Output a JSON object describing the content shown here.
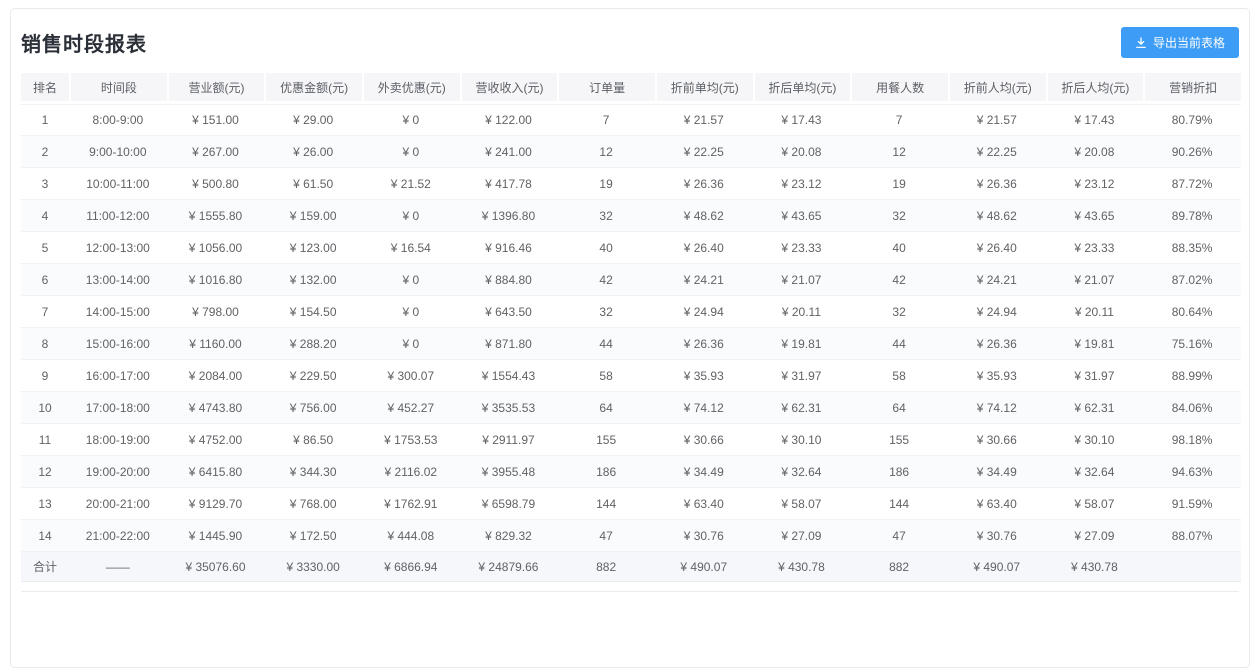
{
  "page": {
    "title": "销售时段报表"
  },
  "toolbar": {
    "export_button_label": "导出当前表格",
    "export_button_icon": "download-icon"
  },
  "colors": {
    "accent_blue": "#3d9cf5",
    "header_cell_bg": "#f6f6f8",
    "stripe_row_bg": "#fafbfc",
    "total_row_bg": "#f5f7fa",
    "row_border": "#f1f2f4",
    "card_border": "#e9eaec",
    "body_text": "#5f6266",
    "title_text": "#2b2f38"
  },
  "table": {
    "columns": [
      "排名",
      "时间段",
      "营业额(元)",
      "优惠金额(元)",
      "外卖优惠(元)",
      "营收收入(元)",
      "订单量",
      "折前单均(元)",
      "折后单均(元)",
      "用餐人数",
      "折前人均(元)",
      "折后人均(元)",
      "营销折扣"
    ],
    "rows": [
      [
        "1",
        "8:00-9:00",
        "¥ 151.00",
        "¥ 29.00",
        "¥ 0",
        "¥ 122.00",
        "7",
        "¥ 21.57",
        "¥ 17.43",
        "7",
        "¥ 21.57",
        "¥ 17.43",
        "80.79%"
      ],
      [
        "2",
        "9:00-10:00",
        "¥ 267.00",
        "¥ 26.00",
        "¥ 0",
        "¥ 241.00",
        "12",
        "¥ 22.25",
        "¥ 20.08",
        "12",
        "¥ 22.25",
        "¥ 20.08",
        "90.26%"
      ],
      [
        "3",
        "10:00-11:00",
        "¥ 500.80",
        "¥ 61.50",
        "¥ 21.52",
        "¥ 417.78",
        "19",
        "¥ 26.36",
        "¥ 23.12",
        "19",
        "¥ 26.36",
        "¥ 23.12",
        "87.72%"
      ],
      [
        "4",
        "11:00-12:00",
        "¥ 1555.80",
        "¥ 159.00",
        "¥ 0",
        "¥ 1396.80",
        "32",
        "¥ 48.62",
        "¥ 43.65",
        "32",
        "¥ 48.62",
        "¥ 43.65",
        "89.78%"
      ],
      [
        "5",
        "12:00-13:00",
        "¥ 1056.00",
        "¥ 123.00",
        "¥ 16.54",
        "¥ 916.46",
        "40",
        "¥ 26.40",
        "¥ 23.33",
        "40",
        "¥ 26.40",
        "¥ 23.33",
        "88.35%"
      ],
      [
        "6",
        "13:00-14:00",
        "¥ 1016.80",
        "¥ 132.00",
        "¥ 0",
        "¥ 884.80",
        "42",
        "¥ 24.21",
        "¥ 21.07",
        "42",
        "¥ 24.21",
        "¥ 21.07",
        "87.02%"
      ],
      [
        "7",
        "14:00-15:00",
        "¥ 798.00",
        "¥ 154.50",
        "¥ 0",
        "¥ 643.50",
        "32",
        "¥ 24.94",
        "¥ 20.11",
        "32",
        "¥ 24.94",
        "¥ 20.11",
        "80.64%"
      ],
      [
        "8",
        "15:00-16:00",
        "¥ 1160.00",
        "¥ 288.20",
        "¥ 0",
        "¥ 871.80",
        "44",
        "¥ 26.36",
        "¥ 19.81",
        "44",
        "¥ 26.36",
        "¥ 19.81",
        "75.16%"
      ],
      [
        "9",
        "16:00-17:00",
        "¥ 2084.00",
        "¥ 229.50",
        "¥ 300.07",
        "¥ 1554.43",
        "58",
        "¥ 35.93",
        "¥ 31.97",
        "58",
        "¥ 35.93",
        "¥ 31.97",
        "88.99%"
      ],
      [
        "10",
        "17:00-18:00",
        "¥ 4743.80",
        "¥ 756.00",
        "¥ 452.27",
        "¥ 3535.53",
        "64",
        "¥ 74.12",
        "¥ 62.31",
        "64",
        "¥ 74.12",
        "¥ 62.31",
        "84.06%"
      ],
      [
        "11",
        "18:00-19:00",
        "¥ 4752.00",
        "¥ 86.50",
        "¥ 1753.53",
        "¥ 2911.97",
        "155",
        "¥ 30.66",
        "¥ 30.10",
        "155",
        "¥ 30.66",
        "¥ 30.10",
        "98.18%"
      ],
      [
        "12",
        "19:00-20:00",
        "¥ 6415.80",
        "¥ 344.30",
        "¥ 2116.02",
        "¥ 3955.48",
        "186",
        "¥ 34.49",
        "¥ 32.64",
        "186",
        "¥ 34.49",
        "¥ 32.64",
        "94.63%"
      ],
      [
        "13",
        "20:00-21:00",
        "¥ 9129.70",
        "¥ 768.00",
        "¥ 1762.91",
        "¥ 6598.79",
        "144",
        "¥ 63.40",
        "¥ 58.07",
        "144",
        "¥ 63.40",
        "¥ 58.07",
        "91.59%"
      ],
      [
        "14",
        "21:00-22:00",
        "¥ 1445.90",
        "¥ 172.50",
        "¥ 444.08",
        "¥ 829.32",
        "47",
        "¥ 30.76",
        "¥ 27.09",
        "47",
        "¥ 30.76",
        "¥ 27.09",
        "88.07%"
      ]
    ],
    "total_row": [
      "合计",
      "——",
      "¥ 35076.60",
      "¥ 3330.00",
      "¥ 6866.94",
      "¥ 24879.66",
      "882",
      "¥ 490.07",
      "¥ 430.78",
      "882",
      "¥ 490.07",
      "¥ 430.78",
      ""
    ]
  }
}
